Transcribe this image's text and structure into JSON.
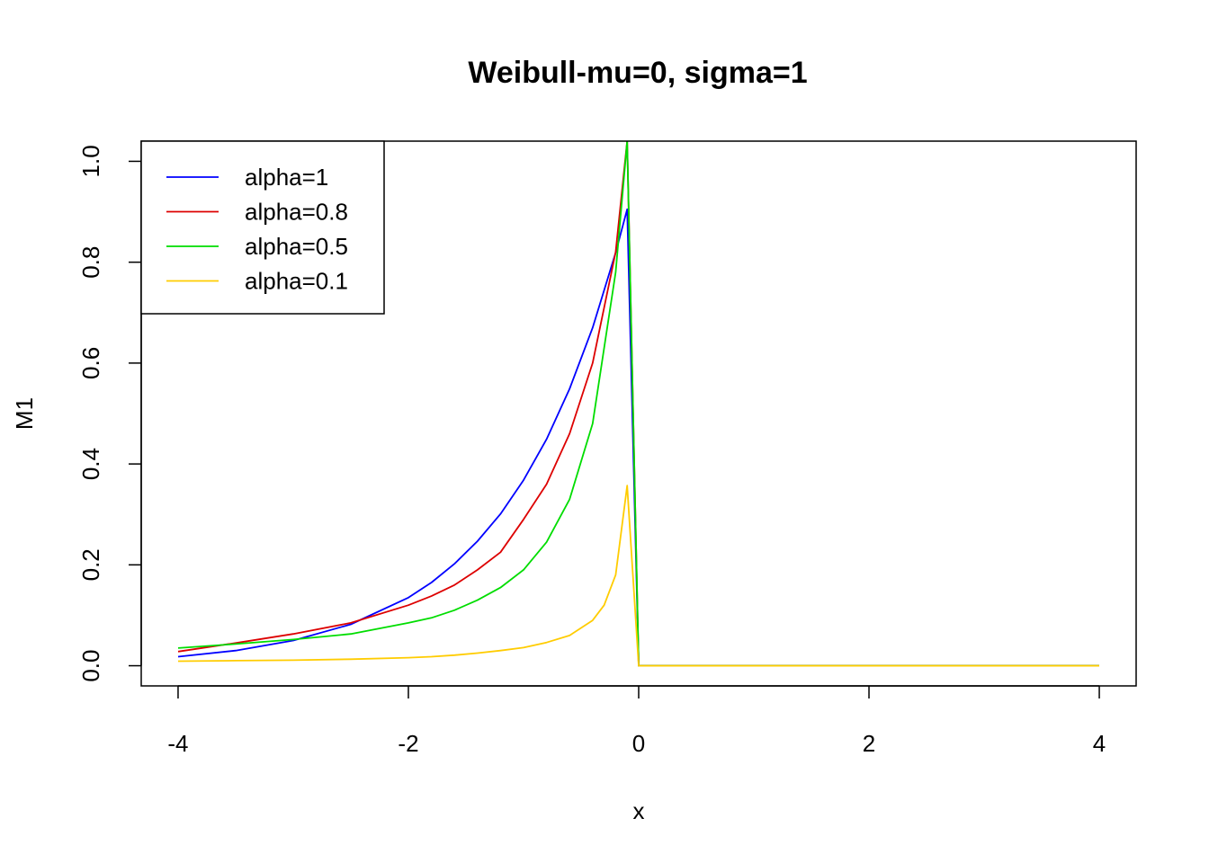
{
  "chart_data": {
    "type": "line",
    "title": "Weibull-mu=0, sigma=1",
    "xlabel": "x",
    "ylabel": "M1",
    "xlim": [
      -4.32,
      4.32
    ],
    "ylim": [
      -0.04,
      1.04
    ],
    "x_ticks": [
      -4,
      -2,
      0,
      2,
      4
    ],
    "x_tick_labels": [
      "-4",
      "-2",
      "0",
      "2",
      "4"
    ],
    "y_ticks": [
      0.0,
      0.2,
      0.4,
      0.6,
      0.8,
      1.0
    ],
    "y_tick_labels": [
      "0.0",
      "0.2",
      "0.4",
      "0.6",
      "0.8",
      "1.0"
    ],
    "grid": false,
    "legend_position": "top-left",
    "series": [
      {
        "name": "alpha=1",
        "color": "#0000ff",
        "x": [
          -4,
          -3.5,
          -3,
          -2.5,
          -2,
          -1.8,
          -1.6,
          -1.4,
          -1.2,
          -1,
          -0.8,
          -0.6,
          -0.4,
          -0.2,
          -0.1,
          0,
          0.5,
          1,
          2,
          3,
          4
        ],
        "y": [
          0.018,
          0.03,
          0.05,
          0.082,
          0.135,
          0.165,
          0.202,
          0.247,
          0.301,
          0.368,
          0.449,
          0.549,
          0.67,
          0.819,
          0.905,
          0,
          0,
          0,
          0,
          0,
          0
        ]
      },
      {
        "name": "alpha=0.8",
        "color": "#dd0000",
        "x": [
          -4,
          -3.5,
          -3,
          -2.5,
          -2,
          -1.8,
          -1.6,
          -1.4,
          -1.2,
          -1,
          -0.8,
          -0.6,
          -0.4,
          -0.2,
          -0.1,
          0,
          0.5,
          1,
          2,
          3,
          4
        ],
        "y": [
          0.028,
          0.045,
          0.063,
          0.085,
          0.12,
          0.138,
          0.16,
          0.19,
          0.225,
          0.29,
          0.36,
          0.46,
          0.6,
          0.82,
          1.04,
          0,
          0,
          0,
          0,
          0,
          0
        ]
      },
      {
        "name": "alpha=0.5",
        "color": "#00dd00",
        "x": [
          -4,
          -3.5,
          -3,
          -2.5,
          -2,
          -1.8,
          -1.6,
          -1.4,
          -1.2,
          -1,
          -0.8,
          -0.6,
          -0.4,
          -0.2,
          -0.1,
          0,
          0.5,
          1,
          2,
          3,
          4
        ],
        "y": [
          0.035,
          0.043,
          0.052,
          0.063,
          0.085,
          0.095,
          0.11,
          0.13,
          0.155,
          0.19,
          0.245,
          0.33,
          0.48,
          0.78,
          1.04,
          0,
          0,
          0,
          0,
          0,
          0
        ]
      },
      {
        "name": "alpha=0.1",
        "color": "#ffcc00",
        "x": [
          -4,
          -3.5,
          -3,
          -2.5,
          -2,
          -1.8,
          -1.6,
          -1.4,
          -1.2,
          -1,
          -0.8,
          -0.6,
          -0.4,
          -0.3,
          -0.2,
          -0.1,
          0,
          0.5,
          1,
          2,
          3,
          4
        ],
        "y": [
          0.009,
          0.01,
          0.011,
          0.013,
          0.016,
          0.018,
          0.021,
          0.025,
          0.03,
          0.036,
          0.046,
          0.06,
          0.09,
          0.12,
          0.18,
          0.357,
          0,
          0,
          0,
          0,
          0,
          0
        ]
      }
    ]
  }
}
